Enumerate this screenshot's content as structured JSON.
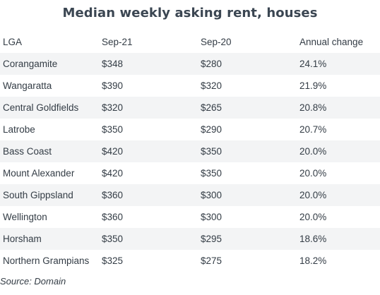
{
  "chart_data": {
    "type": "table",
    "title": "Median weekly asking rent, houses",
    "columns": [
      "LGA",
      "Sep-21",
      "Sep-20",
      "Annual change"
    ],
    "rows": [
      [
        "Corangamite",
        "$348",
        "$280",
        "24.1%"
      ],
      [
        "Wangaratta",
        "$390",
        "$320",
        "21.9%"
      ],
      [
        "Central Goldfields",
        "$320",
        "$265",
        "20.8%"
      ],
      [
        "Latrobe",
        "$350",
        "$290",
        "20.7%"
      ],
      [
        "Bass Coast",
        "$420",
        "$350",
        "20.0%"
      ],
      [
        "Mount Alexander",
        "$420",
        "$350",
        "20.0%"
      ],
      [
        "South Gippsland",
        "$360",
        "$300",
        "20.0%"
      ],
      [
        "Wellington",
        "$360",
        "$300",
        "20.0%"
      ],
      [
        "Horsham",
        "$350",
        "$295",
        "18.6%"
      ],
      [
        "Northern Grampians",
        "$325",
        "$275",
        "18.2%"
      ]
    ],
    "source": "Source: Domain"
  },
  "colors": {
    "title": "#3b4652",
    "text": "#333c45",
    "row_shade": "#f3f4f5"
  }
}
